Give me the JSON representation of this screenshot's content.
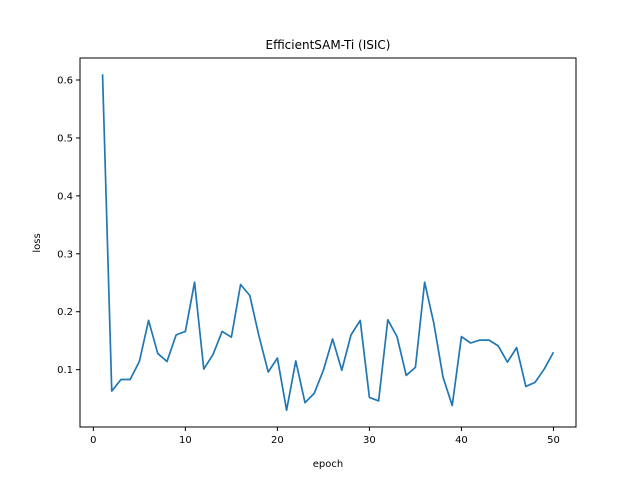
{
  "chart_data": {
    "type": "line",
    "title": "EfficientSAM-Ti (ISIC)",
    "xlabel": "epoch",
    "ylabel": "loss",
    "xlim": [
      -1.45,
      52.45
    ],
    "ylim": [
      0.001,
      0.638
    ],
    "xticks": [
      0,
      10,
      20,
      30,
      40,
      50
    ],
    "yticks": [
      0.1,
      0.2,
      0.3,
      0.4,
      0.5,
      0.6
    ],
    "xtick_labels": [
      "0",
      "10",
      "20",
      "30",
      "40",
      "50"
    ],
    "ytick_labels": [
      "0.1",
      "0.2",
      "0.3",
      "0.4",
      "0.5",
      "0.6"
    ],
    "grid": false,
    "line_color": "#1f77b4",
    "series": [
      {
        "x": [
          1,
          2,
          3,
          4,
          5,
          6,
          7,
          8,
          9,
          10,
          11,
          12,
          13,
          14,
          15,
          16,
          17,
          18,
          19,
          20,
          21,
          22,
          23,
          24,
          25,
          26,
          27,
          28,
          29,
          30,
          31,
          32,
          33,
          34,
          35,
          36,
          37,
          38,
          39,
          40,
          41,
          42,
          43,
          44,
          45,
          46,
          47,
          48,
          49,
          50
        ],
        "values": [
          0.61,
          0.063,
          0.083,
          0.083,
          0.114,
          0.185,
          0.128,
          0.114,
          0.16,
          0.166,
          0.251,
          0.101,
          0.126,
          0.166,
          0.156,
          0.247,
          0.228,
          0.158,
          0.096,
          0.12,
          0.03,
          0.115,
          0.043,
          0.059,
          0.099,
          0.153,
          0.099,
          0.16,
          0.185,
          0.052,
          0.046,
          0.186,
          0.157,
          0.09,
          0.104,
          0.251,
          0.18,
          0.087,
          0.038,
          0.157,
          0.146,
          0.151,
          0.151,
          0.141,
          0.113,
          0.138,
          0.071,
          0.078,
          0.101,
          0.13
        ]
      }
    ]
  }
}
